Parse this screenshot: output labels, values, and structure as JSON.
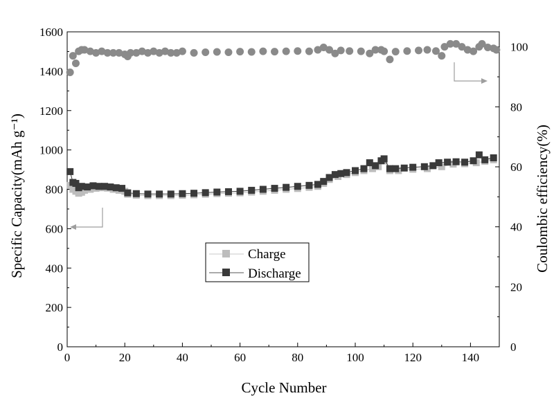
{
  "chart_data": {
    "type": "scatter",
    "title": "",
    "xlabel": "Cycle Number",
    "ylabel_left": "Specific Capacity(mAh g⁻¹)",
    "ylabel_right": "Coulombic efficiency(%)",
    "xlim": [
      0,
      150
    ],
    "ylim_left": [
      0,
      1600
    ],
    "ylim_right": [
      0,
      105
    ],
    "x_ticks": [
      0,
      20,
      40,
      60,
      80,
      100,
      120,
      140
    ],
    "y_left_ticks": [
      0,
      200,
      400,
      600,
      800,
      1000,
      1200,
      1400,
      1600
    ],
    "y_right_ticks": [
      0,
      20,
      40,
      60,
      80,
      100
    ],
    "grid": false,
    "legend_position": "center-left",
    "series": [
      {
        "name": "Charge",
        "axis": "left",
        "marker": "square",
        "color": "#bdbdbd",
        "points": [
          [
            1,
            820
          ],
          [
            2,
            800
          ],
          [
            3,
            790
          ],
          [
            4,
            780
          ],
          [
            5,
            785
          ],
          [
            6,
            795
          ],
          [
            8,
            800
          ],
          [
            10,
            805
          ],
          [
            12,
            808
          ],
          [
            14,
            806
          ],
          [
            16,
            800
          ],
          [
            18,
            795
          ],
          [
            20,
            790
          ],
          [
            21,
            775
          ],
          [
            24,
            770
          ],
          [
            28,
            768
          ],
          [
            32,
            768
          ],
          [
            36,
            768
          ],
          [
            40,
            770
          ],
          [
            44,
            772
          ],
          [
            48,
            775
          ],
          [
            52,
            778
          ],
          [
            56,
            780
          ],
          [
            60,
            782
          ],
          [
            64,
            786
          ],
          [
            68,
            790
          ],
          [
            72,
            795
          ],
          [
            76,
            800
          ],
          [
            80,
            804
          ],
          [
            84,
            810
          ],
          [
            87,
            815
          ],
          [
            89,
            830
          ],
          [
            91,
            850
          ],
          [
            94,
            865
          ],
          [
            97,
            875
          ],
          [
            100,
            885
          ],
          [
            103,
            895
          ],
          [
            106,
            905
          ],
          [
            108,
            915
          ],
          [
            110,
            945
          ],
          [
            112,
            895
          ],
          [
            115,
            895
          ],
          [
            120,
            902
          ],
          [
            125,
            905
          ],
          [
            130,
            915
          ],
          [
            134,
            928
          ],
          [
            138,
            930
          ],
          [
            142,
            935
          ],
          [
            145,
            942
          ],
          [
            148,
            950
          ]
        ]
      },
      {
        "name": "Discharge",
        "axis": "left",
        "marker": "square",
        "color": "#3a3a3a",
        "points": [
          [
            1,
            890
          ],
          [
            2,
            835
          ],
          [
            3,
            830
          ],
          [
            4,
            808
          ],
          [
            5,
            815
          ],
          [
            7,
            812
          ],
          [
            9,
            818
          ],
          [
            11,
            815
          ],
          [
            13,
            815
          ],
          [
            15,
            812
          ],
          [
            17,
            808
          ],
          [
            19,
            805
          ],
          [
            21,
            782
          ],
          [
            24,
            778
          ],
          [
            28,
            776
          ],
          [
            32,
            776
          ],
          [
            36,
            776
          ],
          [
            40,
            778
          ],
          [
            44,
            780
          ],
          [
            48,
            783
          ],
          [
            52,
            786
          ],
          [
            56,
            788
          ],
          [
            60,
            790
          ],
          [
            64,
            795
          ],
          [
            68,
            800
          ],
          [
            72,
            805
          ],
          [
            76,
            810
          ],
          [
            80,
            815
          ],
          [
            84,
            820
          ],
          [
            87,
            825
          ],
          [
            89,
            840
          ],
          [
            91,
            860
          ],
          [
            93,
            875
          ],
          [
            95,
            880
          ],
          [
            97,
            885
          ],
          [
            100,
            895
          ],
          [
            103,
            905
          ],
          [
            105,
            935
          ],
          [
            107,
            920
          ],
          [
            109,
            945
          ],
          [
            110,
            955
          ],
          [
            112,
            905
          ],
          [
            114,
            905
          ],
          [
            117,
            908
          ],
          [
            120,
            912
          ],
          [
            124,
            915
          ],
          [
            127,
            920
          ],
          [
            129,
            935
          ],
          [
            132,
            938
          ],
          [
            135,
            940
          ],
          [
            138,
            938
          ],
          [
            141,
            945
          ],
          [
            143,
            975
          ],
          [
            145,
            950
          ],
          [
            148,
            960
          ]
        ]
      },
      {
        "name": "Coulombic efficiency",
        "axis": "right",
        "marker": "circle",
        "color": "#8a8a8a",
        "points": [
          [
            1,
            91.5
          ],
          [
            2,
            97
          ],
          [
            3,
            94.5
          ],
          [
            4,
            98.5
          ],
          [
            5,
            99
          ],
          [
            6,
            99
          ],
          [
            8,
            98.5
          ],
          [
            10,
            98
          ],
          [
            12,
            98.5
          ],
          [
            14,
            98
          ],
          [
            16,
            98
          ],
          [
            18,
            98
          ],
          [
            20,
            97.5
          ],
          [
            21,
            96.8
          ],
          [
            22,
            98
          ],
          [
            24,
            98
          ],
          [
            26,
            98.5
          ],
          [
            28,
            98
          ],
          [
            30,
            98.5
          ],
          [
            32,
            98
          ],
          [
            34,
            98.5
          ],
          [
            36,
            98
          ],
          [
            38,
            98
          ],
          [
            40,
            98.5
          ],
          [
            44,
            98
          ],
          [
            48,
            98.2
          ],
          [
            52,
            98.3
          ],
          [
            56,
            98.2
          ],
          [
            60,
            98.4
          ],
          [
            64,
            98.3
          ],
          [
            68,
            98.5
          ],
          [
            72,
            98.4
          ],
          [
            76,
            98.5
          ],
          [
            80,
            98.6
          ],
          [
            84,
            98.5
          ],
          [
            87,
            99
          ],
          [
            89,
            99.8
          ],
          [
            91,
            99
          ],
          [
            93,
            97.8
          ],
          [
            95,
            98.8
          ],
          [
            98,
            98.6
          ],
          [
            102,
            98.5
          ],
          [
            105,
            97.8
          ],
          [
            107,
            99
          ],
          [
            109,
            99
          ],
          [
            110,
            98.5
          ],
          [
            112,
            95.8
          ],
          [
            114,
            98.4
          ],
          [
            118,
            98.6
          ],
          [
            122,
            98.8
          ],
          [
            125,
            99
          ],
          [
            128,
            98.6
          ],
          [
            130,
            97
          ],
          [
            131,
            100
          ],
          [
            133,
            101
          ],
          [
            135,
            101
          ],
          [
            137,
            100
          ],
          [
            139,
            99
          ],
          [
            141,
            98.5
          ],
          [
            143,
            100
          ],
          [
            144,
            101
          ],
          [
            146,
            99.8
          ],
          [
            148,
            99.5
          ],
          [
            149,
            99
          ]
        ]
      }
    ],
    "legend": [
      {
        "label": "Charge",
        "color": "#bdbdbd",
        "line": "#c9c9c9"
      },
      {
        "label": "Discharge",
        "color": "#3a3a3a",
        "line": "#555555"
      }
    ],
    "annotation_arrows": [
      {
        "points_to": "left-axis"
      },
      {
        "points_to": "right-axis"
      }
    ]
  }
}
